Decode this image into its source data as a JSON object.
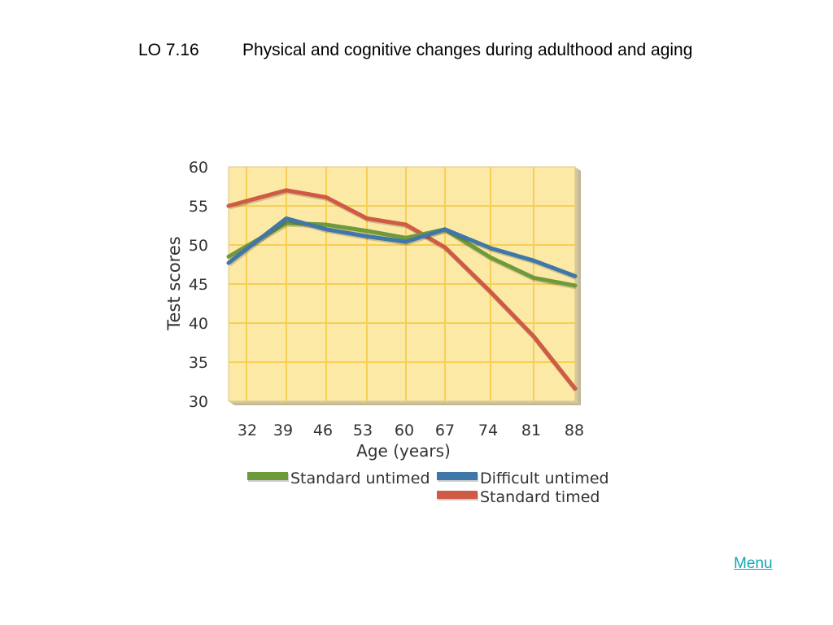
{
  "slide": {
    "lo_code": "LO 7.16",
    "title": "Physical and cognitive changes during adulthood and aging",
    "menu_label": "Menu"
  },
  "chart_data": {
    "type": "line",
    "xlabel": "Age (years)",
    "ylabel": "Test scores",
    "x": [
      32,
      39,
      46,
      53,
      60,
      67,
      74,
      81,
      88
    ],
    "yticks": [
      30,
      35,
      40,
      45,
      50,
      55,
      60
    ],
    "ylim": [
      30,
      60
    ],
    "grid": true,
    "legend_position": "bottom",
    "series": [
      {
        "name": "Standard untimed",
        "color": "#6e9a3c",
        "values": [
          48.5,
          52.8,
          52.6,
          51.8,
          50.9,
          52.0,
          48.4,
          45.8,
          44.8
        ]
      },
      {
        "name": "Difficult untimed",
        "color": "#3f77a8",
        "values": [
          47.7,
          53.4,
          52.0,
          51.1,
          50.4,
          52.0,
          49.6,
          48.0,
          46.0
        ]
      },
      {
        "name": "Standard timed",
        "color": "#cf5a45",
        "values": [
          55.0,
          57.0,
          56.1,
          53.4,
          52.6,
          49.7,
          44.0,
          38.3,
          31.6
        ]
      }
    ]
  }
}
